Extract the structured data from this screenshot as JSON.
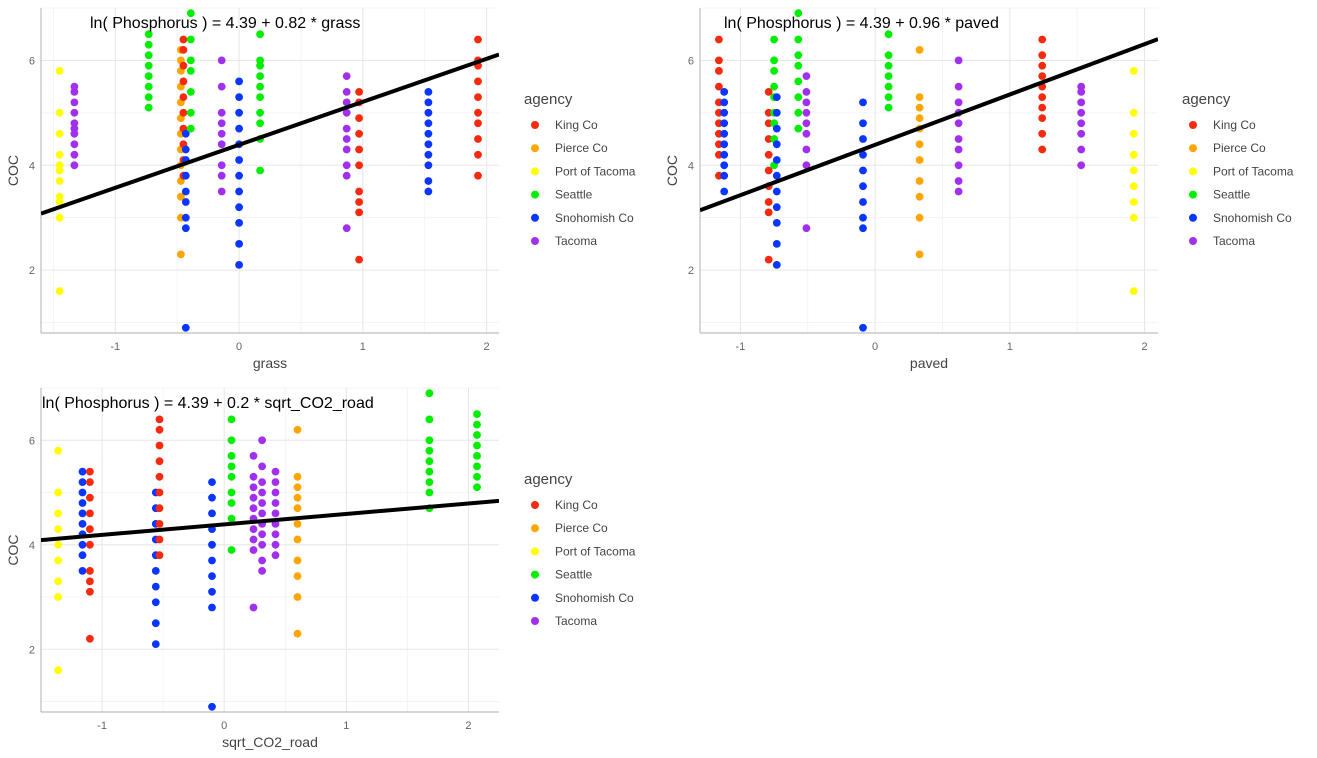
{
  "colors": {
    "King Co": "#f52a0e",
    "Pierce Co": "#ffa500",
    "Port of Tacoma": "#ffff00",
    "Seattle": "#00ee00",
    "Snohomish Co": "#0a36ff",
    "Tacoma": "#a030ee"
  },
  "chart_data": [
    {
      "type": "scatter",
      "title": "ln( Phosphorus ) =  4.39  +  0.82 * grass",
      "xlabel": "grass",
      "ylabel": "COC",
      "xlim": [
        -1.6,
        2.1
      ],
      "ylim": [
        0.8,
        7.0
      ],
      "xticks": [
        -1,
        0,
        1,
        2
      ],
      "yticks": [
        2,
        4,
        6
      ],
      "grid": true,
      "fit": {
        "intercept": 4.39,
        "slope": 0.82
      },
      "legend": {
        "title": "agency",
        "position": "right",
        "entries": [
          "King Co",
          "Pierce Co",
          "Port of Tacoma",
          "Seattle",
          "Snohomish Co",
          "Tacoma"
        ]
      },
      "series": [
        {
          "name": "Port of Tacoma",
          "x": -1.45,
          "y": [
            1.6,
            3.0,
            3.3,
            3.4,
            3.7,
            3.9,
            4.0,
            4.2,
            4.6,
            5.0,
            5.8
          ]
        },
        {
          "name": "Tacoma",
          "x": -1.33,
          "y": [
            4.0,
            4.2,
            4.4,
            4.6,
            4.7,
            4.8,
            5.0,
            5.2,
            5.4,
            5.5
          ]
        },
        {
          "name": "Seattle",
          "x": -0.73,
          "y": [
            5.1,
            5.3,
            5.5,
            5.7,
            5.9,
            6.1,
            6.3,
            6.5
          ]
        },
        {
          "name": "Pierce Co",
          "x": -0.47,
          "y": [
            2.3,
            3.0,
            3.4,
            3.7,
            4.0,
            4.3,
            4.6,
            4.9,
            5.2,
            5.5,
            5.8,
            6.0,
            6.2
          ]
        },
        {
          "name": "King Co",
          "x": -0.45,
          "y": [
            3.8,
            4.1,
            4.4,
            4.7,
            5.0,
            5.3,
            5.6,
            5.9,
            6.2,
            6.4
          ]
        },
        {
          "name": "Snohomish Co",
          "x": -0.43,
          "y": [
            0.9,
            2.8,
            3.0,
            3.3,
            3.5,
            3.8,
            4.1,
            4.3,
            4.6
          ]
        },
        {
          "name": "Seattle",
          "x": -0.39,
          "y": [
            4.7,
            5.0,
            5.4,
            5.8,
            6.0,
            6.4,
            6.9
          ]
        },
        {
          "name": "Tacoma",
          "x": -0.14,
          "y": [
            3.5,
            3.8,
            4.0,
            4.4,
            4.6,
            4.8,
            5.0,
            5.5,
            6.0
          ]
        },
        {
          "name": "Snohomish Co",
          "x": 0.0,
          "y": [
            2.1,
            2.5,
            2.9,
            3.2,
            3.5,
            3.8,
            4.1,
            4.4,
            4.7,
            5.0,
            5.3,
            5.6
          ]
        },
        {
          "name": "Seattle",
          "x": 0.17,
          "y": [
            3.9,
            4.5,
            4.8,
            5.0,
            5.3,
            5.5,
            5.7,
            5.9,
            6.0,
            6.5
          ]
        },
        {
          "name": "Tacoma",
          "x": 0.87,
          "y": [
            2.8,
            3.8,
            4.0,
            4.3,
            4.5,
            4.7,
            5.0,
            5.2,
            5.4,
            5.7
          ]
        },
        {
          "name": "King Co",
          "x": 0.97,
          "y": [
            2.2,
            3.1,
            3.3,
            3.5,
            4.0,
            4.3,
            4.6,
            4.9,
            5.2,
            5.4
          ]
        },
        {
          "name": "Snohomish Co",
          "x": 1.53,
          "y": [
            3.5,
            3.7,
            4.0,
            4.2,
            4.4,
            4.6,
            4.8,
            5.0,
            5.2,
            5.4
          ]
        },
        {
          "name": "King Co",
          "x": 1.93,
          "y": [
            3.8,
            4.2,
            4.5,
            4.8,
            5.0,
            5.3,
            5.6,
            5.9,
            6.0,
            6.4
          ]
        }
      ]
    },
    {
      "type": "scatter",
      "title": "ln( Phosphorus ) =  4.39  +  0.96 * paved",
      "xlabel": "paved",
      "ylabel": "COC",
      "xlim": [
        -1.3,
        2.1
      ],
      "ylim": [
        0.8,
        7.0
      ],
      "xticks": [
        -1,
        0,
        1,
        2
      ],
      "yticks": [
        2,
        4,
        6
      ],
      "grid": true,
      "fit": {
        "intercept": 4.39,
        "slope": 0.96
      },
      "legend": {
        "title": "agency",
        "position": "right",
        "entries": [
          "King Co",
          "Pierce Co",
          "Port of Tacoma",
          "Seattle",
          "Snohomish Co",
          "Tacoma"
        ]
      },
      "series": [
        {
          "name": "King Co",
          "x": -1.16,
          "y": [
            3.8,
            4.2,
            4.4,
            4.6,
            4.8,
            5.0,
            5.2,
            5.5,
            5.8,
            6.0,
            6.4
          ]
        },
        {
          "name": "Snohomish Co",
          "x": -1.12,
          "y": [
            3.5,
            3.8,
            4.0,
            4.2,
            4.4,
            4.6,
            4.8,
            5.0,
            5.2,
            5.4
          ]
        },
        {
          "name": "King Co",
          "x": -0.79,
          "y": [
            2.2,
            3.1,
            3.3,
            3.6,
            3.9,
            4.2,
            4.5,
            4.8,
            5.0,
            5.4
          ]
        },
        {
          "name": "Seattle",
          "x": -0.75,
          "y": [
            4.0,
            4.5,
            4.8,
            5.0,
            5.3,
            5.5,
            5.8,
            6.0,
            6.4
          ]
        },
        {
          "name": "Snohomish Co",
          "x": -0.73,
          "y": [
            2.1,
            2.5,
            2.9,
            3.2,
            3.5,
            3.8,
            4.1,
            4.4,
            4.7,
            5.0,
            5.3
          ]
        },
        {
          "name": "Seattle",
          "x": -0.57,
          "y": [
            4.7,
            5.0,
            5.3,
            5.6,
            5.9,
            6.1,
            6.4,
            6.9
          ]
        },
        {
          "name": "Tacoma",
          "x": -0.51,
          "y": [
            2.8,
            4.0,
            4.3,
            4.6,
            4.8,
            5.0,
            5.2,
            5.4,
            5.7
          ]
        },
        {
          "name": "Snohomish Co",
          "x": -0.09,
          "y": [
            0.9,
            2.8,
            3.0,
            3.3,
            3.6,
            3.9,
            4.2,
            4.5,
            4.8,
            5.2
          ]
        },
        {
          "name": "Seattle",
          "x": 0.1,
          "y": [
            5.1,
            5.3,
            5.5,
            5.7,
            5.9,
            6.1,
            6.5
          ]
        },
        {
          "name": "Pierce Co",
          "x": 0.33,
          "y": [
            2.3,
            3.0,
            3.4,
            3.7,
            4.1,
            4.4,
            4.7,
            4.9,
            5.1,
            5.3,
            6.2
          ]
        },
        {
          "name": "Tacoma",
          "x": 0.62,
          "y": [
            3.5,
            3.7,
            4.0,
            4.3,
            4.5,
            4.8,
            5.0,
            5.2,
            5.5,
            6.0
          ]
        },
        {
          "name": "King Co",
          "x": 1.24,
          "y": [
            4.3,
            4.6,
            4.9,
            5.1,
            5.3,
            5.5,
            5.7,
            5.9,
            6.1,
            6.4
          ]
        },
        {
          "name": "Tacoma",
          "x": 1.53,
          "y": [
            4.0,
            4.3,
            4.6,
            4.8,
            5.0,
            5.2,
            5.4,
            5.5
          ]
        },
        {
          "name": "Port of Tacoma",
          "x": 1.92,
          "y": [
            1.6,
            3.0,
            3.3,
            3.6,
            3.9,
            4.2,
            4.6,
            5.0,
            5.8
          ]
        }
      ]
    },
    {
      "type": "scatter",
      "title": "ln( Phosphorus ) =  4.39  +  0.2 * sqrt_CO2_road",
      "xlabel": "sqrt_CO2_road",
      "ylabel": "COC",
      "xlim": [
        -1.5,
        2.25
      ],
      "ylim": [
        0.8,
        7.0
      ],
      "xticks": [
        -1,
        0,
        1,
        2
      ],
      "yticks": [
        2,
        4,
        6
      ],
      "grid": true,
      "fit": {
        "intercept": 4.39,
        "slope": 0.2
      },
      "legend": {
        "title": "agency",
        "position": "right",
        "entries": [
          "King Co",
          "Pierce Co",
          "Port of Tacoma",
          "Seattle",
          "Snohomish Co",
          "Tacoma"
        ]
      },
      "series": [
        {
          "name": "Port of Tacoma",
          "x": -1.36,
          "y": [
            1.6,
            3.0,
            3.3,
            3.7,
            4.0,
            4.3,
            4.6,
            5.0,
            5.8
          ]
        },
        {
          "name": "Snohomish Co",
          "x": -1.16,
          "y": [
            3.5,
            3.8,
            4.0,
            4.2,
            4.4,
            4.6,
            4.8,
            5.0,
            5.2,
            5.4
          ]
        },
        {
          "name": "King Co",
          "x": -1.1,
          "y": [
            2.2,
            3.1,
            3.3,
            3.5,
            4.0,
            4.3,
            4.6,
            4.9,
            5.2,
            5.4
          ]
        },
        {
          "name": "Snohomish Co",
          "x": -0.56,
          "y": [
            2.1,
            2.5,
            2.9,
            3.2,
            3.5,
            3.8,
            4.1,
            4.4,
            4.7,
            5.0
          ]
        },
        {
          "name": "King Co",
          "x": -0.53,
          "y": [
            3.8,
            4.1,
            4.4,
            4.7,
            5.0,
            5.3,
            5.6,
            5.9,
            6.2,
            6.4
          ]
        },
        {
          "name": "Snohomish Co",
          "x": -0.1,
          "y": [
            0.9,
            2.8,
            3.1,
            3.4,
            3.7,
            4.0,
            4.3,
            4.6,
            4.9,
            5.2
          ]
        },
        {
          "name": "Seattle",
          "x": 0.06,
          "y": [
            3.9,
            4.5,
            4.8,
            5.0,
            5.3,
            5.5,
            5.7,
            6.0,
            6.4
          ]
        },
        {
          "name": "Tacoma",
          "x": 0.24,
          "y": [
            2.8,
            3.9,
            4.1,
            4.3,
            4.5,
            4.7,
            4.9,
            5.1,
            5.3,
            5.7
          ]
        },
        {
          "name": "Tacoma",
          "x": 0.31,
          "y": [
            3.5,
            3.7,
            4.0,
            4.2,
            4.4,
            4.6,
            4.8,
            5.0,
            5.2,
            5.5,
            6.0
          ]
        },
        {
          "name": "Tacoma",
          "x": 0.42,
          "y": [
            3.8,
            4.0,
            4.2,
            4.4,
            4.6,
            4.8,
            5.0,
            5.2,
            5.4
          ]
        },
        {
          "name": "Pierce Co",
          "x": 0.6,
          "y": [
            2.3,
            3.0,
            3.4,
            3.7,
            4.1,
            4.4,
            4.7,
            4.9,
            5.1,
            5.3,
            6.2
          ]
        },
        {
          "name": "Seattle",
          "x": 1.68,
          "y": [
            4.7,
            5.0,
            5.2,
            5.4,
            5.6,
            5.8,
            6.0,
            6.4,
            6.9
          ]
        },
        {
          "name": "Seattle",
          "x": 2.07,
          "y": [
            5.1,
            5.3,
            5.5,
            5.7,
            5.9,
            6.1,
            6.3,
            6.5
          ]
        }
      ]
    }
  ]
}
